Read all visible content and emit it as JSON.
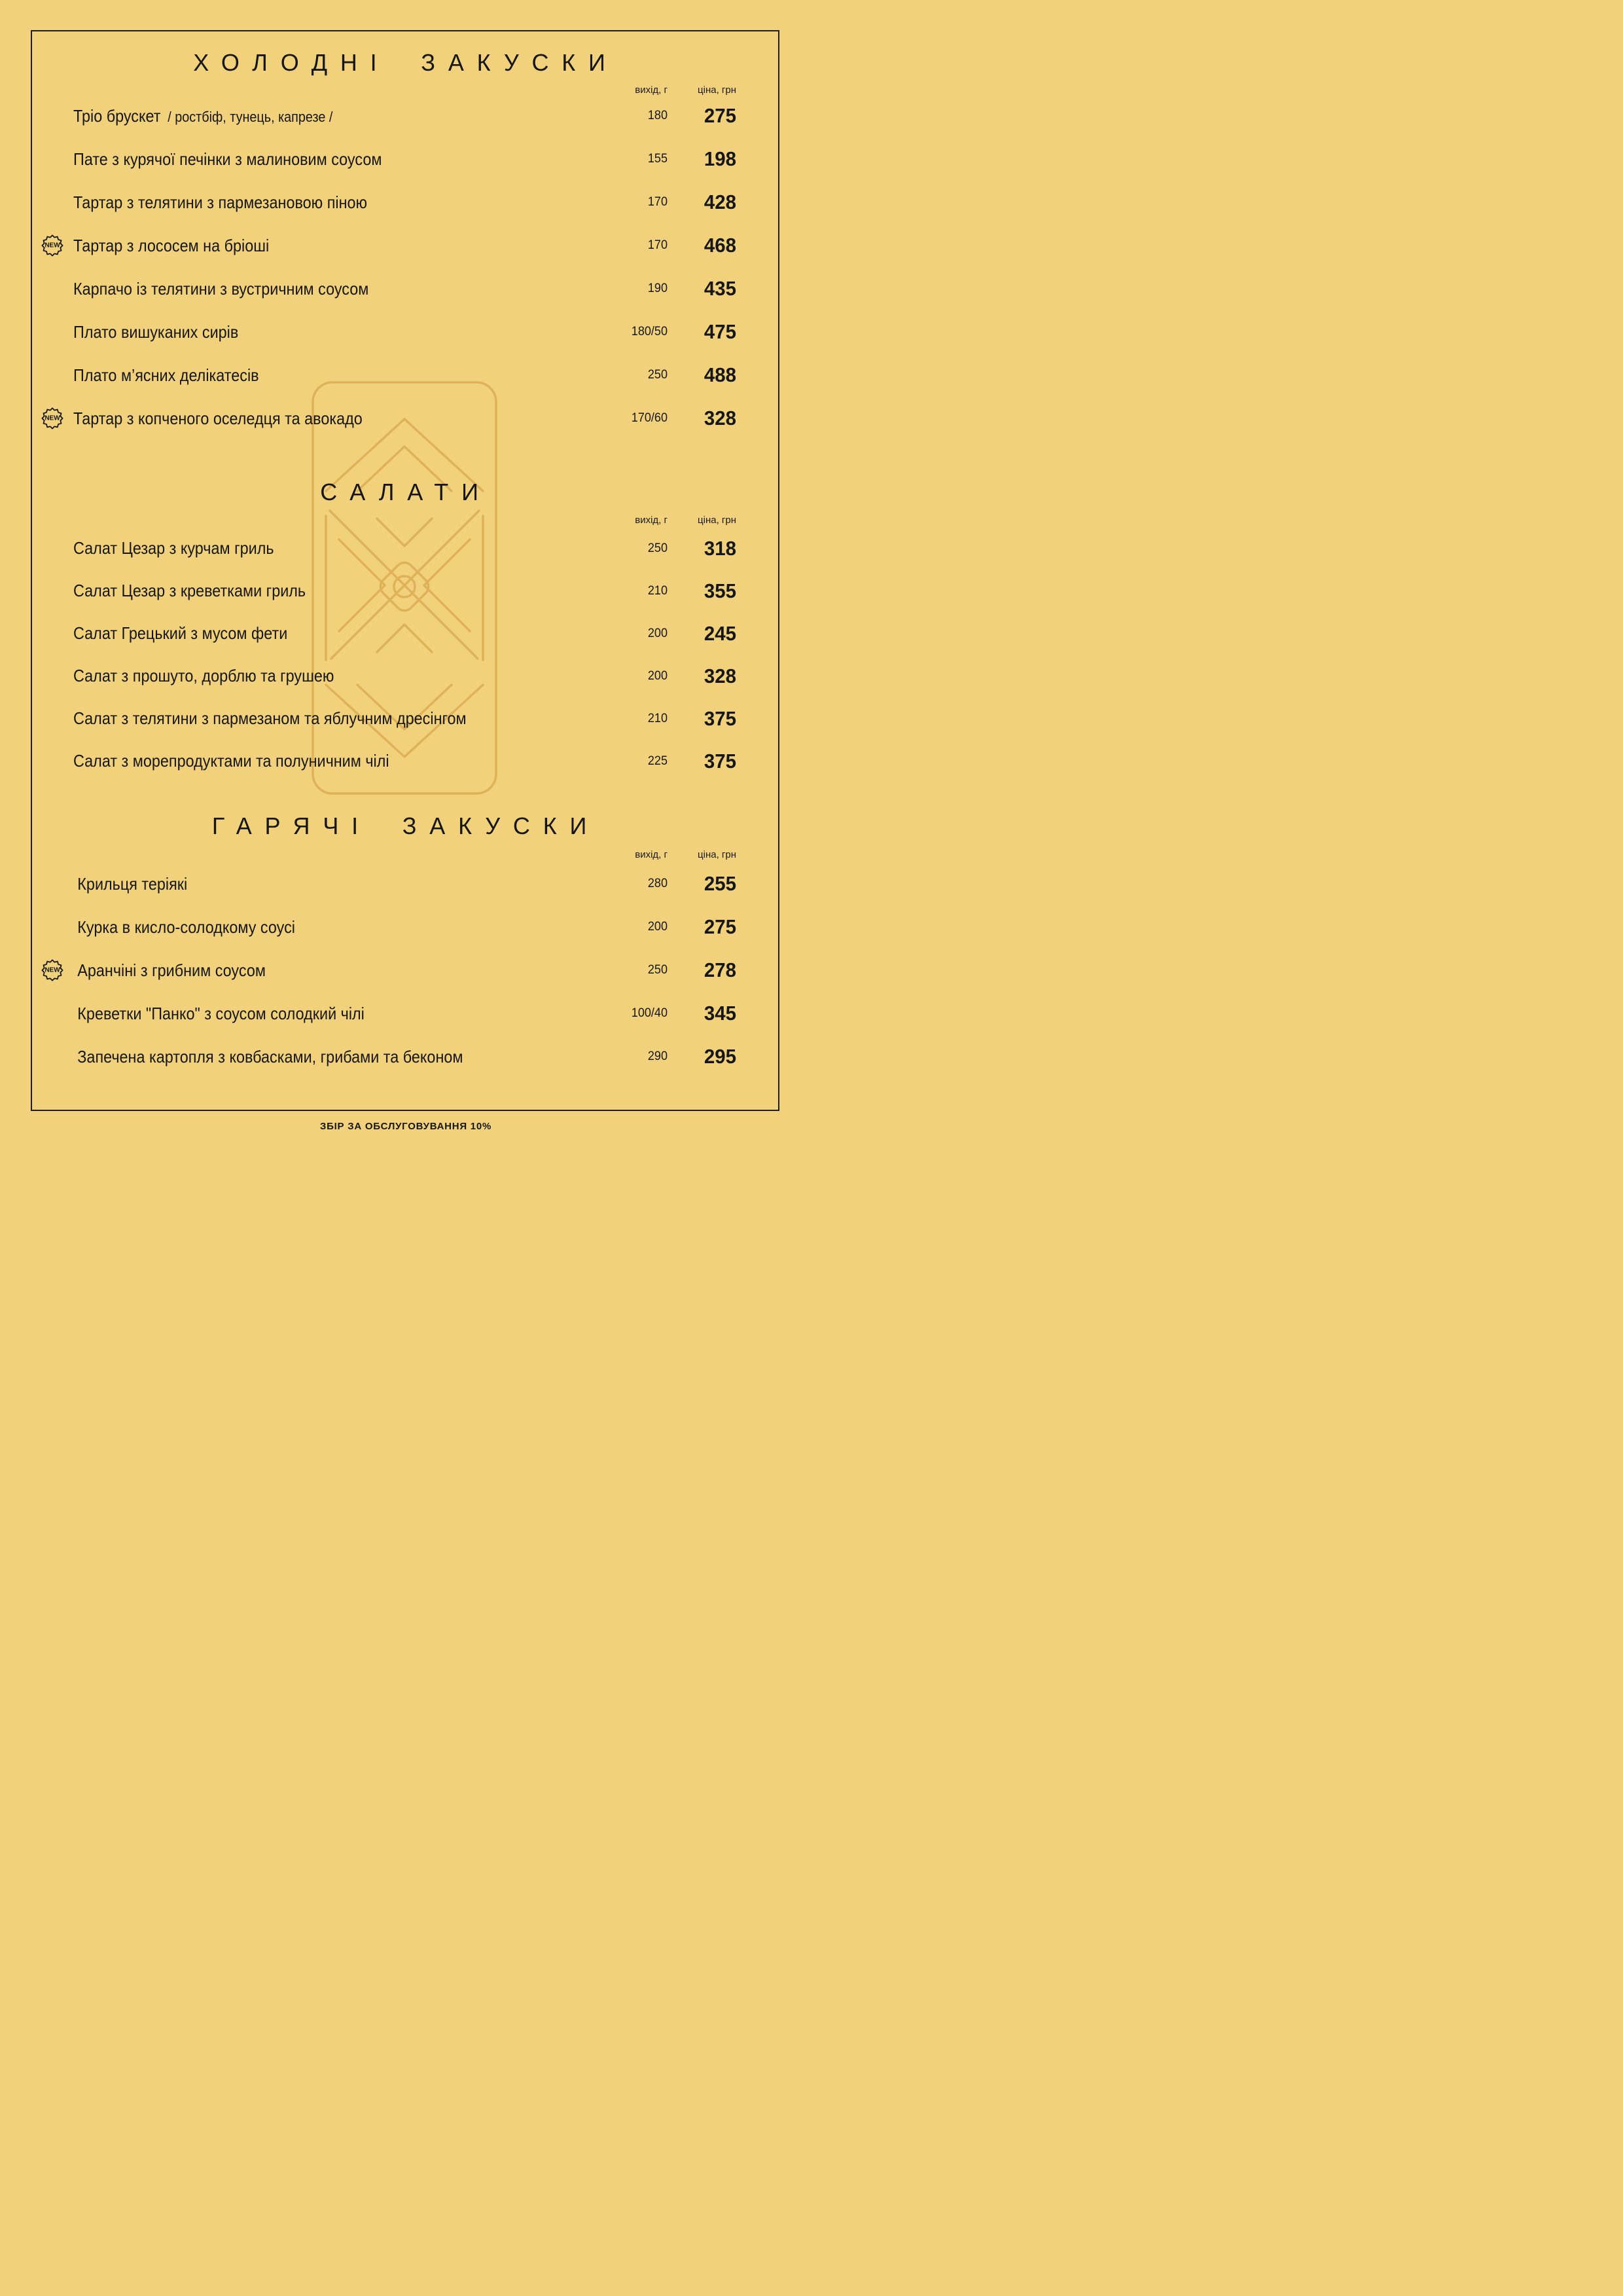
{
  "page": {
    "footer": "ЗБІР ЗА ОБСЛУГОВУВАННЯ 10%",
    "badge_new": "NEW",
    "columns": {
      "weight": "вихід, г",
      "price": "ціна, грн"
    },
    "colors": {
      "background": "#f2d17d",
      "ink": "#161616",
      "watermark": "#d9a84e"
    }
  },
  "sections": [
    {
      "title": "ХОЛОДНІ ЗАКУСКИ",
      "items": [
        {
          "name": "Тріо брускет",
          "note": "/ ростбіф, тунець, капрезе /",
          "weight": "180",
          "price": "275"
        },
        {
          "name": "Пате з курячої печінки з малиновим соусом",
          "weight": "155",
          "price": "198"
        },
        {
          "name": "Тартар з телятини з пармезановою піною",
          "weight": "170",
          "price": "428"
        },
        {
          "name": "Тартар з лососем на бріоші",
          "new": true,
          "weight": "170",
          "price": "468"
        },
        {
          "name": "Карпачо із телятини з вустричним соусом",
          "weight": "190",
          "price": "435"
        },
        {
          "name": "Плато вишуканих сирів",
          "weight": "180/50",
          "price": "475"
        },
        {
          "name": "Плато м’ясних делікатесів",
          "weight": "250",
          "price": "488"
        },
        {
          "name": "Тартар з копченого оселедця та авокадо",
          "new": true,
          "weight": "170/60",
          "price": "328"
        }
      ]
    },
    {
      "title": "САЛАТИ",
      "items": [
        {
          "name": "Салат Цезар з курчам гриль",
          "weight": "250",
          "price": "318"
        },
        {
          "name": "Салат Цезар з креветками гриль",
          "weight": "210",
          "price": "355"
        },
        {
          "name": "Салат Грецький з мусом фети",
          "weight": "200",
          "price": "245"
        },
        {
          "name": "Салат з прошуто, дорблю та грушею",
          "weight": "200",
          "price": "328"
        },
        {
          "name": "Салат з телятини з пармезаном та яблучним дресінгом",
          "weight": "210",
          "price": "375"
        },
        {
          "name": "Салат з морепродуктами та полуничним чілі",
          "weight": "225",
          "price": "375"
        }
      ]
    },
    {
      "title": "ГАРЯЧІ ЗАКУСКИ",
      "items": [
        {
          "name": "Крильця теріякі",
          "weight": "280",
          "price": "255"
        },
        {
          "name": "Курка в кисло-солодкому соусі",
          "weight": "200",
          "price": "275"
        },
        {
          "name": "Аранчіні з грибним соусом",
          "new": true,
          "weight": "250",
          "price": "278"
        },
        {
          "name": "Креветки \"Панко\" з соусом солодкий чілі",
          "weight": "100/40",
          "price": "345"
        },
        {
          "name": "Запечена картопля з ковбасками, грибами та беконом",
          "weight": "290",
          "price": "295"
        }
      ]
    }
  ]
}
